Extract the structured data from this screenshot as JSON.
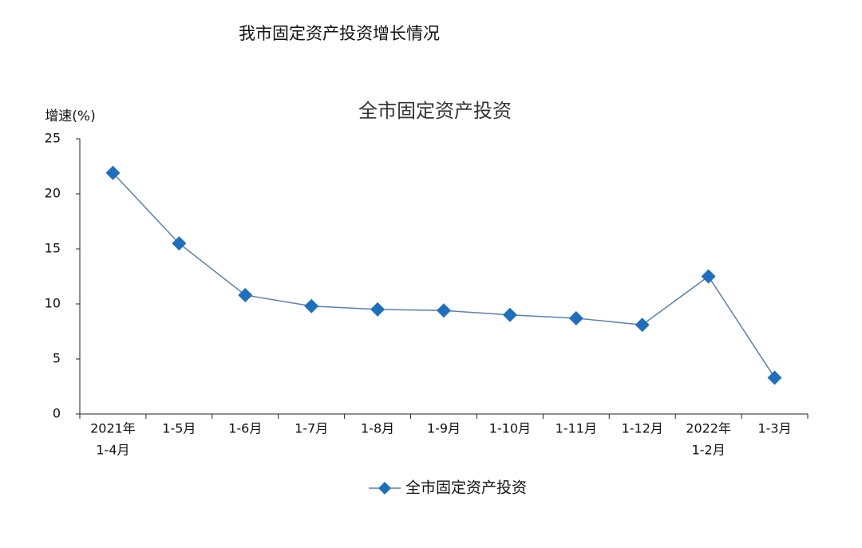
{
  "header": {
    "title": "我市固定资产投资增长情况"
  },
  "chart_data": {
    "type": "line",
    "title": "全市固定资产投资",
    "y_label": "增速(%)",
    "categories": [
      [
        "2021年",
        "1-4月"
      ],
      "1-5月",
      "1-6月",
      "1-7月",
      "1-8月",
      "1-9月",
      "1-10月",
      "1-11月",
      "1-12月",
      [
        "2022年",
        "1-2月"
      ],
      "1-3月"
    ],
    "series": [
      {
        "name": "全市固定资产投资",
        "color": "#1f6fbf",
        "line_color": "#5a7fae",
        "values": [
          21.9,
          15.5,
          10.8,
          9.8,
          9.5,
          9.4,
          9.0,
          8.7,
          8.1,
          12.5,
          3.3
        ]
      }
    ],
    "ylim": [
      0,
      25
    ],
    "yticks": [
      0,
      5,
      10,
      15,
      20,
      25
    ],
    "grid": false,
    "legend": "bottom"
  }
}
